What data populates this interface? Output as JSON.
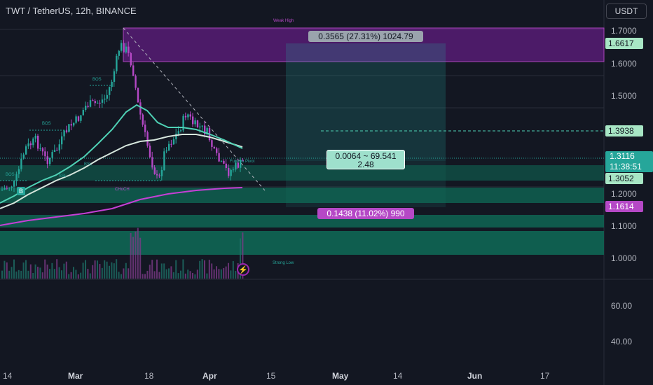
{
  "header": {
    "title": "TWT / TetherUS, 12h, BINANCE",
    "currency": "USDT"
  },
  "price_axis": {
    "ticks": [
      "1.7000",
      "1.6000",
      "1.5000",
      "1.2000",
      "1.1000",
      "1.0000"
    ],
    "tags": {
      "zone_top": "1.6617",
      "level": "1.3938",
      "current_price": "1.3116",
      "countdown": "11:38:51",
      "support": "1.3052",
      "stop": "1.1614"
    }
  },
  "indicator_axis": {
    "ticks": [
      "60.00",
      "40.00"
    ]
  },
  "time_axis": {
    "ticks": [
      "14",
      "Mar",
      "18",
      "Apr",
      "15",
      "May",
      "14",
      "Jun",
      "17"
    ]
  },
  "measurements": {
    "target": "0.3565 (27.31%) 1024.79",
    "entry_line1": "0.0064 ~ 69.541",
    "entry_line2": "2.48",
    "stop": "0.1438 (11.02%) 990"
  },
  "annotations": {
    "weak_high": "Weak High",
    "strong_low": "Strong Low",
    "bos_1": "BOS",
    "bos_2": "BOS",
    "bos_3": "BOS",
    "choch": "CHoCH",
    "futures_pivot": "Futures Pivot",
    "b_label": "B",
    "ssl": "SSL",
    "bsl": "BSL"
  },
  "colors": {
    "background": "#131722",
    "bull": "#26a69a",
    "bear": "#b548c6",
    "ema_fast": "#4fd1b5",
    "ema_slow": "#d6e6dd",
    "ema_long": "#c63fd6",
    "zone_purple": "#8e2aa8",
    "zone_green": "#0f6b57"
  }
}
